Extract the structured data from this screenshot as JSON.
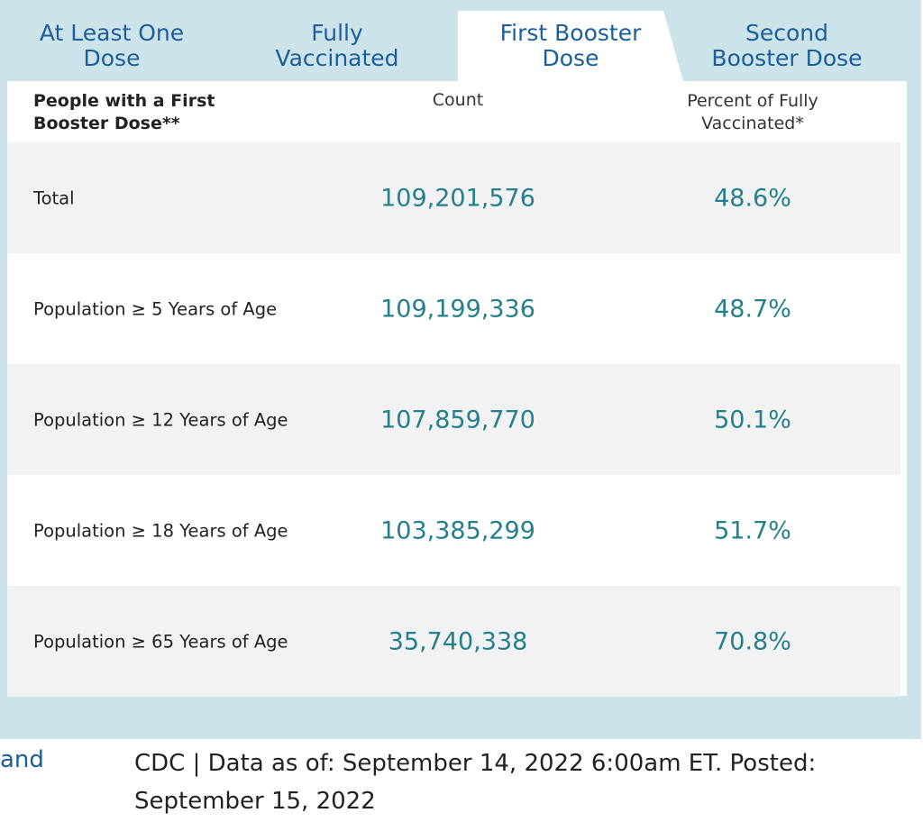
{
  "tabs": [
    {
      "label": "At Least One\nDose",
      "active": false
    },
    {
      "label": "Fully\nVaccinated",
      "active": false
    },
    {
      "label": "First Booster\nDose",
      "active": true
    },
    {
      "label": "Second\nBooster Dose",
      "active": false
    }
  ],
  "table": {
    "header": {
      "label": "People with a First Booster Dose**",
      "count": "Count",
      "percent": "Percent of Fully Vaccinated*"
    },
    "rows": [
      {
        "label": "Total",
        "count": "109,201,576",
        "percent": "48.6%"
      },
      {
        "label": "Population ≥ 5 Years of Age",
        "count": "109,199,336",
        "percent": "48.7%"
      },
      {
        "label": "Population ≥ 12 Years of Age",
        "count": "107,859,770",
        "percent": "50.1%"
      },
      {
        "label": "Population ≥ 18 Years of Age",
        "count": "103,385,299",
        "percent": "51.7%"
      },
      {
        "label": "Population ≥ 65 Years of Age",
        "count": "35,740,338",
        "percent": "70.8%"
      }
    ]
  },
  "footer": {
    "left_link_fragment": "and",
    "source_note": "CDC | Data as of: September 14, 2022 6:00am ET. Posted: September 15, 2022"
  },
  "colors": {
    "frame_bg": "#cde3ea",
    "tab_text": "#1a5e9c",
    "value_text": "#23808c",
    "row_shade": "#f2f2f2"
  }
}
